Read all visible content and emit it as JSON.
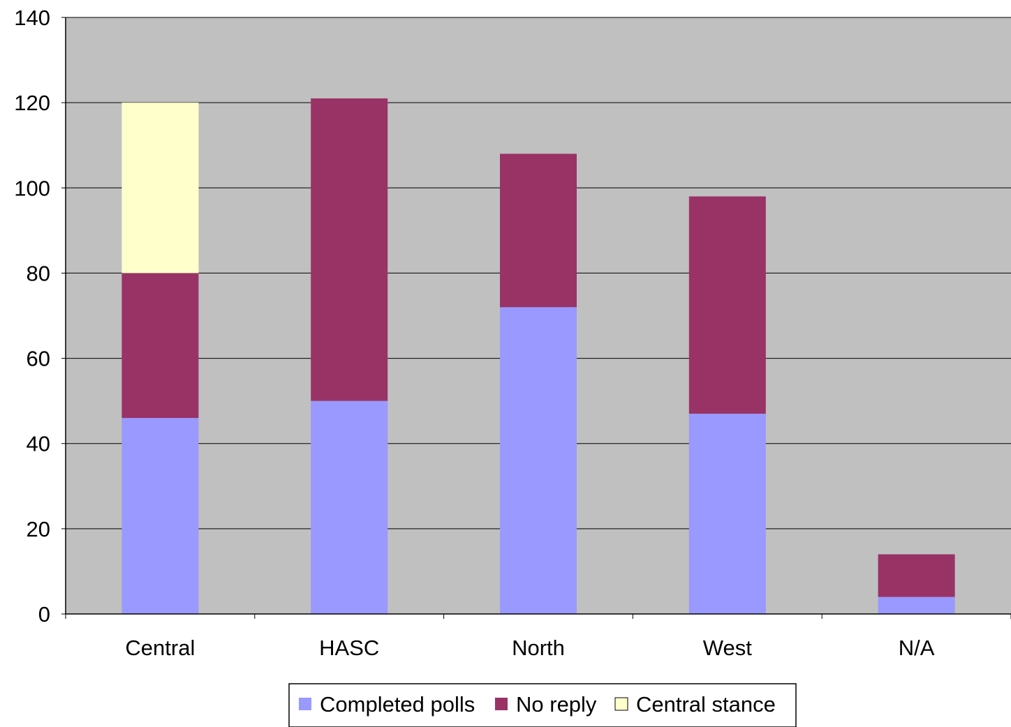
{
  "chart_data": {
    "type": "bar",
    "stacked": true,
    "categories": [
      "Central",
      "HASC",
      "North",
      "West",
      "N/A"
    ],
    "series": [
      {
        "name": "Completed polls",
        "color": "#9999ff",
        "values": [
          46,
          50,
          72,
          47,
          4
        ]
      },
      {
        "name": "No reply",
        "color": "#993366",
        "values": [
          34,
          71,
          36,
          51,
          10
        ]
      },
      {
        "name": "Central stance",
        "color": "#ffffcc",
        "values": [
          40,
          0,
          0,
          0,
          0
        ]
      }
    ],
    "title": "",
    "xlabel": "",
    "ylabel": "",
    "ylim": [
      0,
      140
    ],
    "yticks": [
      "0",
      "20",
      "40",
      "60",
      "80",
      "100",
      "120",
      "140"
    ],
    "grid": true,
    "plot_background": "#c0c0c0",
    "legend_position": "bottom-center"
  }
}
